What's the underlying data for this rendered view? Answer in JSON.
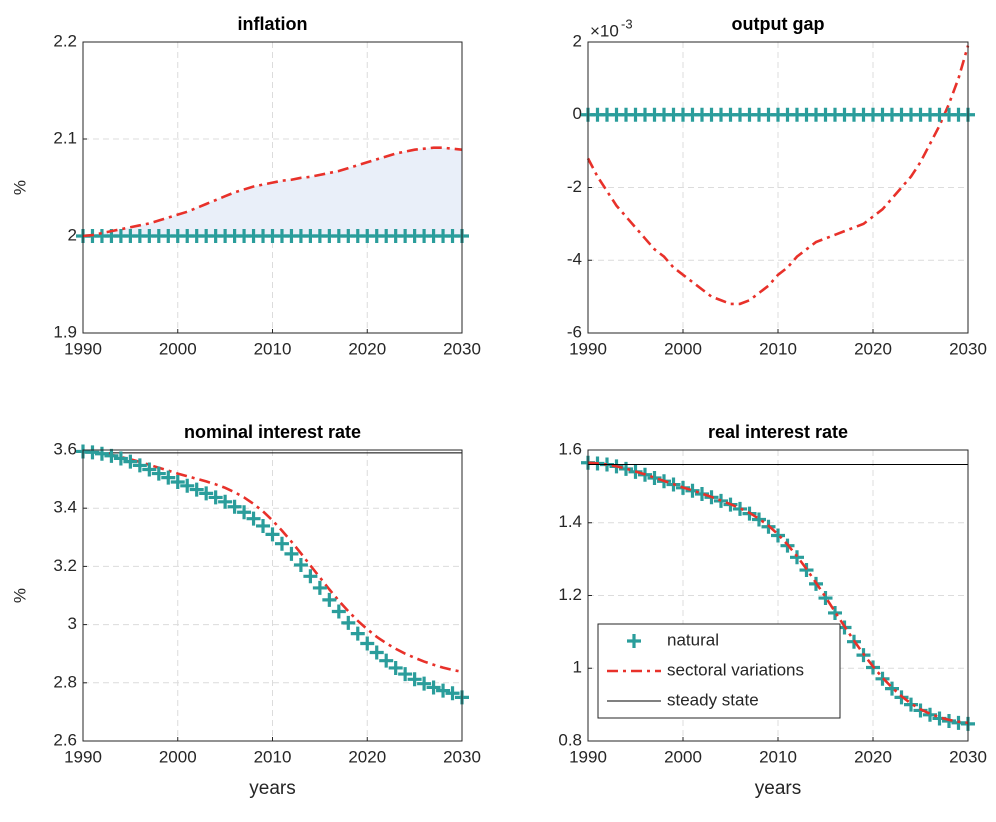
{
  "chart_data": [
    {
      "type": "line",
      "title": "inflation",
      "ylabel": "%",
      "xlim": [
        1990,
        2030
      ],
      "xticks": [
        1990,
        2000,
        2010,
        2020,
        2030
      ],
      "ylim": [
        1.9,
        2.2
      ],
      "yticks": [
        1.9,
        2,
        2.1,
        2.2
      ],
      "grid": true,
      "shade": true,
      "shade_color": "#e9eff9",
      "x": [
        1990,
        1991,
        1992,
        1993,
        1994,
        1995,
        1996,
        1997,
        1998,
        1999,
        2000,
        2001,
        2002,
        2003,
        2004,
        2005,
        2006,
        2007,
        2008,
        2009,
        2010,
        2011,
        2012,
        2013,
        2014,
        2015,
        2016,
        2017,
        2018,
        2019,
        2020,
        2021,
        2022,
        2023,
        2024,
        2025,
        2026,
        2027,
        2028,
        2029,
        2030
      ],
      "series": [
        {
          "style": "marker",
          "color": "#2a9d9b",
          "values": [
            2,
            2,
            2,
            2,
            2,
            2,
            2,
            2,
            2,
            2,
            2,
            2,
            2,
            2,
            2,
            2,
            2,
            2,
            2,
            2,
            2,
            2,
            2,
            2,
            2,
            2,
            2,
            2,
            2,
            2,
            2,
            2,
            2,
            2,
            2,
            2,
            2,
            2,
            2,
            2,
            2
          ]
        },
        {
          "style": "dashdot",
          "color": "#e8312a",
          "values": [
            2.0,
            2.001,
            2.003,
            2.005,
            2.007,
            2.009,
            2.011,
            2.013,
            2.016,
            2.019,
            2.022,
            2.025,
            2.029,
            2.033,
            2.037,
            2.041,
            2.045,
            2.048,
            2.051,
            2.053,
            2.055,
            2.057,
            2.058,
            2.06,
            2.061,
            2.063,
            2.065,
            2.067,
            2.07,
            2.073,
            2.076,
            2.079,
            2.082,
            2.085,
            2.087,
            2.089,
            2.09,
            2.091,
            2.091,
            2.09,
            2.089
          ]
        }
      ]
    },
    {
      "type": "line",
      "title": "output gap",
      "y_multiplier": "×10",
      "y_exponent": "-3",
      "xlim": [
        1990,
        2030
      ],
      "xticks": [
        1990,
        2000,
        2010,
        2020,
        2030
      ],
      "ylim": [
        -6,
        2
      ],
      "yticks": [
        -6,
        -4,
        -2,
        0,
        2
      ],
      "grid": true,
      "x": [
        1990,
        1991,
        1992,
        1993,
        1994,
        1995,
        1996,
        1997,
        1998,
        1999,
        2000,
        2001,
        2002,
        2003,
        2004,
        2005,
        2006,
        2007,
        2008,
        2009,
        2010,
        2011,
        2012,
        2013,
        2014,
        2015,
        2016,
        2017,
        2018,
        2019,
        2020,
        2021,
        2022,
        2023,
        2024,
        2025,
        2026,
        2027,
        2028,
        2029,
        2030
      ],
      "series": [
        {
          "style": "dashdot",
          "color": "#e8312a",
          "values": [
            -1.2,
            -1.7,
            -2.1,
            -2.5,
            -2.8,
            -3.1,
            -3.4,
            -3.7,
            -3.9,
            -4.2,
            -4.4,
            -4.6,
            -4.8,
            -5.0,
            -5.1,
            -5.2,
            -5.2,
            -5.1,
            -4.9,
            -4.7,
            -4.4,
            -4.2,
            -3.9,
            -3.7,
            -3.5,
            -3.4,
            -3.3,
            -3.2,
            -3.1,
            -3.0,
            -2.8,
            -2.6,
            -2.3,
            -2.0,
            -1.7,
            -1.3,
            -0.8,
            -0.3,
            0.3,
            1.0,
            1.9
          ]
        },
        {
          "style": "marker",
          "color": "#2a9d9b",
          "values": [
            0,
            0,
            0,
            0,
            0,
            0,
            0,
            0,
            0,
            0,
            0,
            0,
            0,
            0,
            0,
            0,
            0,
            0,
            0,
            0,
            0,
            0,
            0,
            0,
            0,
            0,
            0,
            0,
            0,
            0,
            0,
            0,
            0,
            0,
            0,
            0,
            0,
            0,
            0,
            0,
            0
          ]
        }
      ]
    },
    {
      "type": "line",
      "title": "nominal interest rate",
      "ylabel": "%",
      "xlabel": "years",
      "xlim": [
        1990,
        2030
      ],
      "xticks": [
        1990,
        2000,
        2010,
        2020,
        2030
      ],
      "ylim": [
        2.6,
        3.6
      ],
      "yticks": [
        2.6,
        2.8,
        3,
        3.2,
        3.4,
        3.6
      ],
      "grid": true,
      "x": [
        1990,
        1991,
        1992,
        1993,
        1994,
        1995,
        1996,
        1997,
        1998,
        1999,
        2000,
        2001,
        2002,
        2003,
        2004,
        2005,
        2006,
        2007,
        2008,
        2009,
        2010,
        2011,
        2012,
        2013,
        2014,
        2015,
        2016,
        2017,
        2018,
        2019,
        2020,
        2021,
        2022,
        2023,
        2024,
        2025,
        2026,
        2027,
        2028,
        2029,
        2030
      ],
      "series": [
        {
          "style": "solid",
          "color": "#000000",
          "x": [
            1990,
            2030
          ],
          "values": [
            3.59,
            3.59
          ]
        },
        {
          "style": "dashdot",
          "color": "#e8312a",
          "values": [
            3.595,
            3.592,
            3.588,
            3.583,
            3.576,
            3.568,
            3.559,
            3.549,
            3.539,
            3.529,
            3.519,
            3.51,
            3.501,
            3.492,
            3.482,
            3.47,
            3.455,
            3.437,
            3.415,
            3.389,
            3.358,
            3.323,
            3.285,
            3.245,
            3.203,
            3.162,
            3.121,
            3.082,
            3.046,
            3.013,
            2.984,
            2.958,
            2.936,
            2.917,
            2.9,
            2.886,
            2.873,
            2.862,
            2.852,
            2.844,
            2.838
          ]
        },
        {
          "style": "marker",
          "color": "#2a9d9b",
          "values": [
            3.595,
            3.592,
            3.587,
            3.58,
            3.571,
            3.56,
            3.547,
            3.533,
            3.519,
            3.505,
            3.49,
            3.477,
            3.464,
            3.451,
            3.437,
            3.422,
            3.405,
            3.386,
            3.364,
            3.339,
            3.31,
            3.278,
            3.243,
            3.205,
            3.166,
            3.126,
            3.085,
            3.045,
            3.006,
            2.969,
            2.935,
            2.904,
            2.876,
            2.851,
            2.83,
            2.812,
            2.797,
            2.784,
            2.773,
            2.764,
            2.75
          ]
        }
      ]
    },
    {
      "type": "line",
      "title": "real interest rate",
      "xlabel": "years",
      "legend": "lower left",
      "xlim": [
        1990,
        2030
      ],
      "xticks": [
        1990,
        2000,
        2010,
        2020,
        2030
      ],
      "ylim": [
        0.8,
        1.6
      ],
      "yticks": [
        0.8,
        1,
        1.2,
        1.4,
        1.6
      ],
      "grid": true,
      "x": [
        1990,
        1991,
        1992,
        1993,
        1994,
        1995,
        1996,
        1997,
        1998,
        1999,
        2000,
        2001,
        2002,
        2003,
        2004,
        2005,
        2006,
        2007,
        2008,
        2009,
        2010,
        2011,
        2012,
        2013,
        2014,
        2015,
        2016,
        2017,
        2018,
        2019,
        2020,
        2021,
        2022,
        2023,
        2024,
        2025,
        2026,
        2027,
        2028,
        2029,
        2030
      ],
      "series": [
        {
          "name": "natural",
          "style": "marker",
          "color": "#2a9d9b",
          "values": [
            1.565,
            1.563,
            1.56,
            1.555,
            1.548,
            1.54,
            1.532,
            1.523,
            1.514,
            1.505,
            1.496,
            1.488,
            1.479,
            1.47,
            1.46,
            1.45,
            1.438,
            1.425,
            1.409,
            1.389,
            1.365,
            1.337,
            1.305,
            1.27,
            1.232,
            1.193,
            1.152,
            1.112,
            1.073,
            1.036,
            1.002,
            0.971,
            0.944,
            0.92,
            0.9,
            0.884,
            0.872,
            0.862,
            0.855,
            0.85,
            0.847
          ]
        },
        {
          "name": "sectoral variations",
          "style": "dashdot",
          "color": "#e8312a",
          "values": [
            1.565,
            1.563,
            1.56,
            1.555,
            1.549,
            1.541,
            1.533,
            1.524,
            1.515,
            1.506,
            1.497,
            1.489,
            1.48,
            1.471,
            1.461,
            1.451,
            1.44,
            1.427,
            1.411,
            1.392,
            1.368,
            1.34,
            1.308,
            1.273,
            1.235,
            1.196,
            1.155,
            1.115,
            1.076,
            1.039,
            1.005,
            0.974,
            0.947,
            0.923,
            0.903,
            0.887,
            0.875,
            0.865,
            0.858,
            0.853,
            0.85
          ]
        },
        {
          "name": "steady state",
          "style": "solid",
          "color": "#000000",
          "x": [
            1990,
            2030
          ],
          "values": [
            1.56,
            1.56
          ]
        }
      ]
    }
  ]
}
